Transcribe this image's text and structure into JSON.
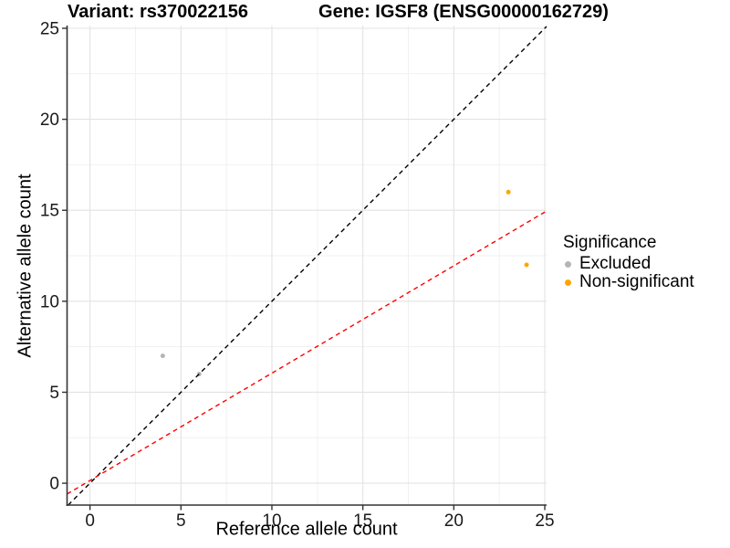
{
  "titles": {
    "left": "Variant: rs370022156",
    "right": "Gene: IGSF8 (ENSG00000162729)"
  },
  "chart_data": {
    "type": "scatter",
    "title": "Variant: rs370022156 / Gene: IGSF8 (ENSG00000162729)",
    "xlabel": "Reference allele count",
    "ylabel": "Alternative allele count",
    "xlim": [
      -1.26,
      25.1
    ],
    "ylim": [
      -1.2,
      25.15
    ],
    "x_ticks": [
      0,
      5,
      10,
      15,
      20,
      25
    ],
    "y_ticks": [
      0,
      5,
      10,
      15,
      20,
      25
    ],
    "x_minor_ticks": [
      2.5,
      7.5,
      12.5,
      17.5,
      22.5
    ],
    "y_minor_ticks": [
      2.5,
      7.5,
      12.5,
      17.5,
      22.5
    ],
    "grid": {
      "major": true,
      "minor": true
    },
    "legend": {
      "title": "Significance",
      "position": "right",
      "items": [
        {
          "label": "Excluded",
          "color": "#B5B5B5"
        },
        {
          "label": "Non-significant",
          "color": "#FFA500"
        }
      ]
    },
    "series": [
      {
        "name": "Excluded",
        "color": "#B5B5B5",
        "point_radius": 2.5,
        "points": [
          {
            "x": 4,
            "y": 7
          },
          {
            "x": 6,
            "y": 6
          }
        ]
      },
      {
        "name": "Non-significant",
        "color": "#FFA500",
        "point_radius": 2.5,
        "points": [
          {
            "x": 23,
            "y": 16
          },
          {
            "x": 24,
            "y": 12
          }
        ]
      }
    ],
    "lines": [
      {
        "name": "identity",
        "slope": 1,
        "intercept": 0,
        "color": "#000000",
        "style": "dashed"
      },
      {
        "name": "fit",
        "slope": 0.59,
        "intercept": 0.15,
        "color": "#FF0000",
        "style": "dashed"
      }
    ]
  },
  "colors": {
    "background": "#FFFFFF",
    "grid_major": "#E3E3E3",
    "grid_minor": "#F1F1F1",
    "axis_line": "#333333",
    "tick_label": "#1A1A1A",
    "excluded": "#B5B5B5",
    "non_significant": "#FFA500",
    "identity_line": "#000000",
    "fit_line": "#FF0000"
  }
}
